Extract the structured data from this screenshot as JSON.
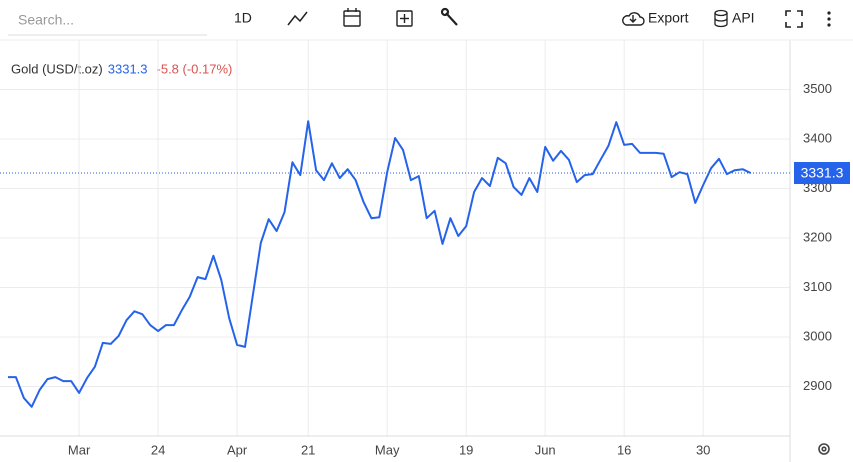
{
  "toolbar": {
    "search": "Search...",
    "period": "1D",
    "export": "Export",
    "api": "API"
  },
  "chart_data": {
    "type": "line",
    "title": "Gold (USD/t.oz)",
    "change": "-5.8 (-0.17%)",
    "color": "#2563eb",
    "categories": [
      null,
      null,
      null,
      null,
      null,
      null,
      null,
      null,
      null,
      "Mar",
      null,
      null,
      null,
      null,
      null,
      null,
      null,
      null,
      null,
      "24",
      null,
      null,
      null,
      null,
      null,
      null,
      null,
      null,
      null,
      "Apr",
      null,
      null,
      null,
      null,
      null,
      null,
      null,
      null,
      "21",
      null,
      null,
      null,
      null,
      null,
      null,
      null,
      null,
      null,
      "May",
      null,
      null,
      null,
      null,
      null,
      null,
      null,
      null,
      null,
      "19",
      null,
      null,
      null,
      null,
      null,
      null,
      null,
      null,
      null,
      "Jun",
      null,
      null,
      null,
      null,
      null,
      null,
      null,
      null,
      null,
      "16",
      null,
      null,
      null,
      null,
      null,
      null,
      null,
      null,
      null,
      "30",
      null,
      null,
      null,
      null,
      null,
      null
    ],
    "values": [
      2919,
      2919,
      2877,
      2859,
      2893,
      2915,
      2919,
      2911,
      2911,
      2887,
      2917,
      2940,
      2988,
      2986,
      3002,
      3034,
      3052,
      3046,
      3024,
      3012,
      3024,
      3024,
      3054,
      3081,
      3121,
      3117,
      3164,
      3115,
      3038,
      2984,
      2980,
      3085,
      3190,
      3238,
      3214,
      3252,
      3353,
      3327,
      3436,
      3337,
      3317,
      3351,
      3321,
      3339,
      3317,
      3273,
      3240,
      3242,
      3333,
      3402,
      3378,
      3317,
      3325,
      3240,
      3255,
      3188,
      3240,
      3204,
      3224,
      3293,
      3321,
      3305,
      3362,
      3351,
      3303,
      3287,
      3321,
      3293,
      3384,
      3356,
      3376,
      3358,
      3313,
      3327,
      3329,
      3358,
      3386,
      3434,
      3388,
      3390,
      3372,
      3372,
      3372,
      3370,
      3323,
      3333,
      3329,
      3271,
      3307,
      3341,
      3360,
      3329,
      3337,
      3339,
      3331.3
    ],
    "ylim": [
      2800,
      3600
    ],
    "yticks": [
      2900,
      3000,
      3100,
      3200,
      3300,
      3400,
      3500
    ],
    "grid": true
  }
}
